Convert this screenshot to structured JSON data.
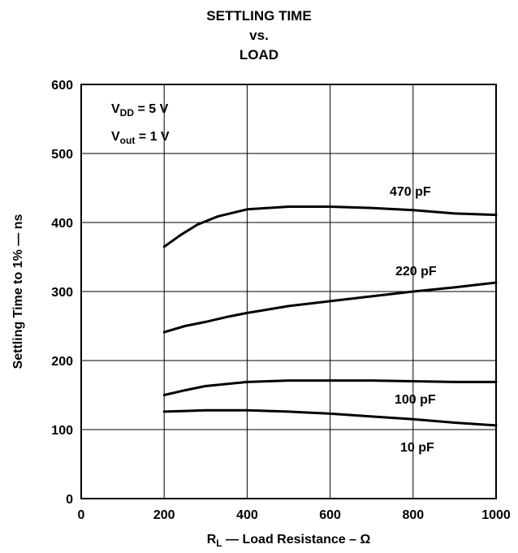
{
  "chart_data": {
    "type": "line",
    "title": [
      "SETTLING TIME",
      "vs.",
      "LOAD"
    ],
    "xlabel": {
      "main": "R",
      "sub": "L",
      "rest": " — Load Resistance – Ω"
    },
    "ylabel": "Settling Time to 1% — ns",
    "xlim": [
      0,
      1000
    ],
    "ylim": [
      0,
      600
    ],
    "xticks": [
      0,
      200,
      400,
      600,
      800,
      1000
    ],
    "yticks": [
      0,
      100,
      200,
      300,
      400,
      500,
      600
    ],
    "grid": true,
    "annotations": [
      {
        "main": "V",
        "sub": "DD",
        "rest": " = 5 V"
      },
      {
        "main": "V",
        "sub": "out",
        "rest": " = 1 V"
      }
    ],
    "series": [
      {
        "name": "470 pF",
        "x": [
          200,
          240,
          280,
          330,
          400,
          500,
          600,
          700,
          800,
          900,
          1000
        ],
        "y": [
          365,
          382,
          397,
          409,
          419,
          423,
          423,
          421,
          418,
          413,
          411
        ]
      },
      {
        "name": "220 pF",
        "x": [
          200,
          250,
          300,
          350,
          400,
          500,
          600,
          700,
          800,
          900,
          1000
        ],
        "y": [
          241,
          250,
          256,
          263,
          269,
          279,
          286,
          293,
          300,
          306,
          313
        ]
      },
      {
        "name": "100 pF",
        "x": [
          200,
          250,
          300,
          350,
          400,
          500,
          600,
          700,
          800,
          900,
          1000
        ],
        "y": [
          150,
          157,
          163,
          166,
          169,
          171,
          171,
          171,
          170,
          169,
          169
        ]
      },
      {
        "name": "10 pF",
        "x": [
          200,
          250,
          300,
          400,
          500,
          600,
          700,
          800,
          900,
          1000
        ],
        "y": [
          126,
          127,
          128,
          128,
          126,
          123,
          119,
          115,
          110,
          106
        ]
      }
    ]
  }
}
